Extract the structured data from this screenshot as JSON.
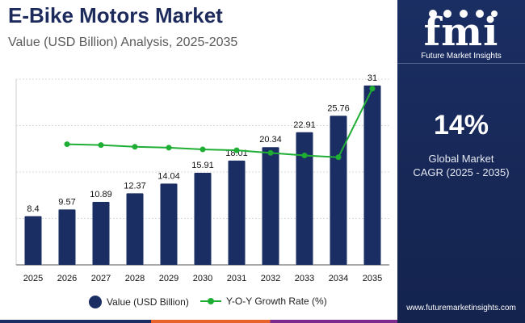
{
  "header": {
    "title": "E-Bike Motors Market",
    "subtitle": "Value (USD Billion) Analysis, 2025-2035"
  },
  "sidebar": {
    "logo_text": "fmi",
    "logo_subtext": "Future Market Insights",
    "cagr_value": "14%",
    "cagr_label_line1": "Global Market",
    "cagr_label_line2": "CAGR (2025 - 2035)",
    "website": "www.futuremarketinsights.com"
  },
  "colors": {
    "bar": "#1b2e63",
    "line": "#1fae34",
    "panel": "#1b2e63",
    "title": "#1d2a5c"
  },
  "chart_data": {
    "type": "bar",
    "title": "E-Bike Motors Market",
    "categories": [
      "2025",
      "2026",
      "2027",
      "2028",
      "2029",
      "2030",
      "2031",
      "2032",
      "2033",
      "2034",
      "2035"
    ],
    "series": [
      {
        "name": "Value (USD Billion)",
        "type": "bar",
        "values": [
          8.4,
          9.57,
          10.89,
          12.37,
          14.04,
          15.91,
          18.01,
          20.34,
          22.91,
          25.76,
          31
        ],
        "labels": [
          "8.4",
          "9.57",
          "10.89",
          "12.37",
          "14.04",
          "15.91",
          "18.01",
          "20.34",
          "22.91",
          "25.76",
          "31"
        ]
      },
      {
        "name": "Y-O-Y Growth Rate (%)",
        "type": "line",
        "values": [
          null,
          13.9,
          13.8,
          13.6,
          13.5,
          13.3,
          13.2,
          12.9,
          12.6,
          12.4,
          20.3
        ]
      }
    ],
    "ylim": [
      0,
      36
    ],
    "y2lim": [
      0,
      24
    ],
    "grid": true,
    "legend": "bottom-center"
  }
}
